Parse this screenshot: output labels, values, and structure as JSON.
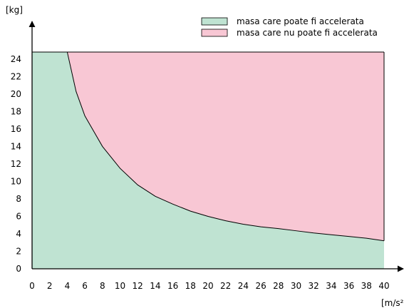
{
  "chart_data": {
    "type": "area",
    "y_unit": "[kg]",
    "x_unit": "[m/s²]",
    "xlim": [
      0,
      40
    ],
    "ylim": [
      0,
      25
    ],
    "x_ticks": [
      0,
      2,
      4,
      6,
      8,
      10,
      12,
      14,
      16,
      18,
      20,
      22,
      24,
      26,
      28,
      30,
      32,
      34,
      36,
      38,
      40
    ],
    "y_ticks": [
      0,
      2,
      4,
      6,
      8,
      10,
      12,
      14,
      16,
      18,
      20,
      22,
      24
    ],
    "grid": false,
    "legend_position": "top-right",
    "series": [
      {
        "name": "masa care poate fi accelerata",
        "color": "#bfe3d2"
      },
      {
        "name": "masa care nu poate fi accelerata",
        "color": "#f8c7d4"
      }
    ],
    "curve": {
      "x": [
        0,
        3.9,
        4,
        5,
        6,
        8,
        10,
        12,
        14,
        16,
        18,
        20,
        22,
        24,
        26,
        28,
        30,
        32,
        34,
        36,
        38,
        40
      ],
      "y": [
        24.8,
        24.8,
        24.8,
        20.3,
        17.5,
        14.0,
        11.5,
        9.6,
        8.3,
        7.4,
        6.6,
        6.0,
        5.5,
        5.1,
        4.8,
        4.6,
        4.35,
        4.1,
        3.9,
        3.7,
        3.5,
        3.2
      ]
    },
    "top_value": 24.8
  }
}
